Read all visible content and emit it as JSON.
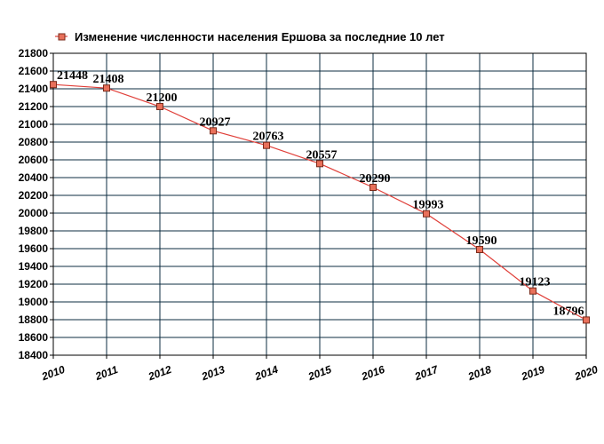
{
  "chart_data": {
    "type": "line",
    "title": "",
    "xlabel": "",
    "ylabel": "",
    "categories": [
      "2010",
      "2011",
      "2012",
      "2013",
      "2014",
      "2015",
      "2016",
      "2017",
      "2018",
      "2019",
      "2020"
    ],
    "series": [
      {
        "name": "Изменение численности населения Ершова за последние 10 лет",
        "values": [
          21448,
          21408,
          21200,
          20927,
          20763,
          20557,
          20290,
          19993,
          19590,
          19123,
          18796
        ],
        "labels": [
          "21448",
          "21408",
          "21200",
          "20927",
          "20763",
          "20557",
          "20290",
          "19993",
          "19590",
          "19123",
          "18796"
        ]
      }
    ],
    "ylim": [
      18400,
      21800
    ],
    "ystep": 200,
    "y_tick_labels": [
      "18400",
      "18600",
      "18800",
      "19000",
      "19200",
      "19400",
      "19600",
      "19800",
      "20000",
      "20200",
      "20400",
      "20600",
      "20800",
      "21000",
      "21200",
      "21400",
      "21600",
      "21800"
    ],
    "grid": true,
    "legend_position": "top-left",
    "colors": {
      "line": "#e0403a",
      "marker_fill": "#e8705a",
      "marker_stroke": "#7a2a1a",
      "grid": "#0c2c40",
      "axis": "#000000"
    }
  }
}
